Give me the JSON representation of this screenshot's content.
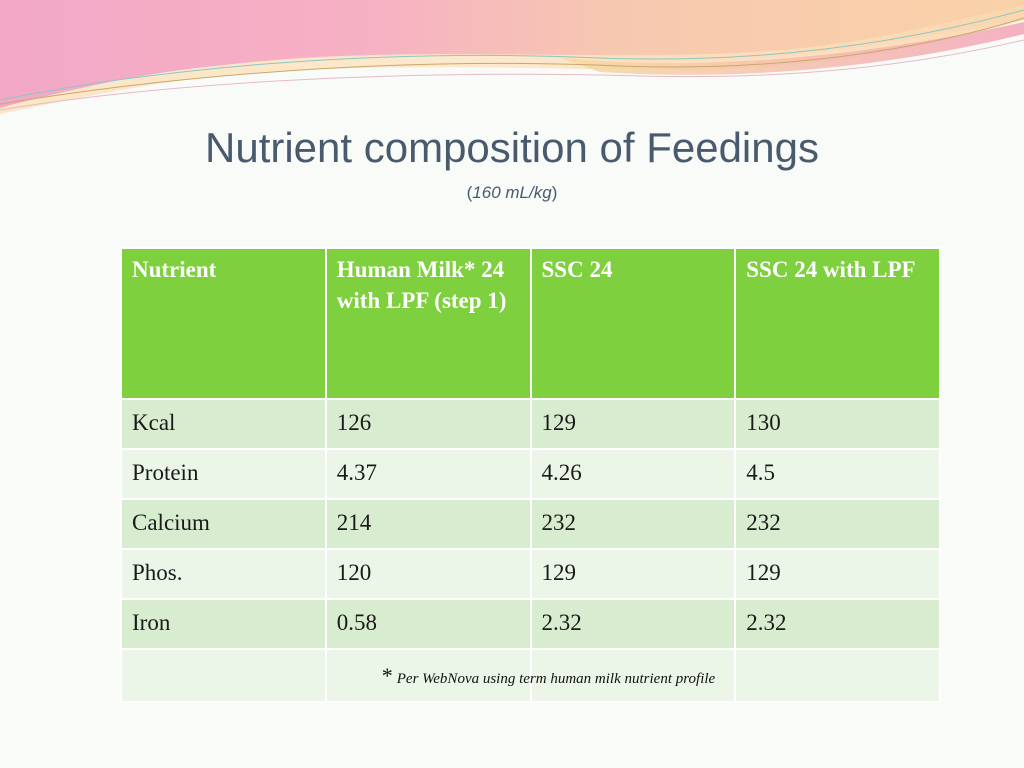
{
  "slide": {
    "title": "Nutrient composition of Feedings",
    "subtitle_open": "(",
    "subtitle_italic": "160 mL/kg",
    "subtitle_close": ")"
  },
  "table": {
    "headers": [
      "Nutrient",
      "Human Milk* 24 with LPF (step 1)",
      "SSC 24",
      "SSC 24 with LPF"
    ],
    "rows": [
      [
        "Kcal",
        "126",
        "129",
        "130"
      ],
      [
        "Protein",
        "4.37",
        "4.26",
        "4.5"
      ],
      [
        "Calcium",
        "214",
        "232",
        "232"
      ],
      [
        "Phos.",
        "120",
        "129",
        "129"
      ],
      [
        "Iron",
        "0.58",
        "2.32",
        "2.32"
      ]
    ],
    "footnote_marker": "*",
    "footnote_text": "Per WebNova using term human milk nutrient profile"
  },
  "colors": {
    "header_bg": "#7ed03f",
    "row_dark": "#d8ecd0",
    "row_light": "#ecf6e8",
    "title": "#4a5a6e"
  }
}
